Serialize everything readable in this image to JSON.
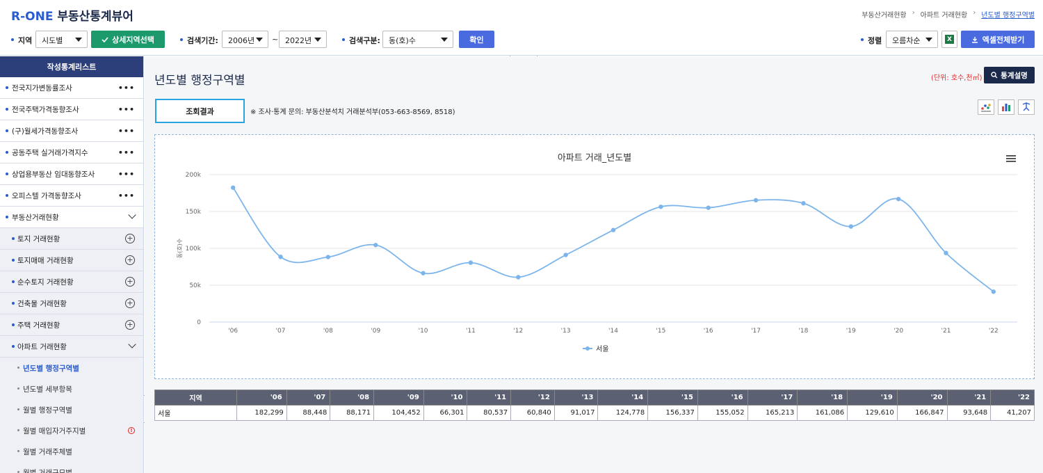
{
  "header": {
    "logo_brand": "R-ONE",
    "logo_rest": "부동산통계뷰어",
    "breadcrumb": [
      "부동산거래현황",
      "아파트 거래현황",
      "년도별 행정구역별"
    ],
    "breadcrumb_sep": "›"
  },
  "filters": {
    "region_label": "지역",
    "region_value": "시도별",
    "detail_region_label": "상세지역선택",
    "period_label": "검색기간:",
    "period_from": "2006년",
    "period_tilde": "~",
    "period_to": "2022년",
    "search_type_label": "검색구분:",
    "search_type_value": "동(호)수",
    "confirm_label": "확인",
    "sort_label": "정렬",
    "sort_value": "오름차순",
    "excel_icon_text": "X",
    "download_label": "엑셀전체받기"
  },
  "collapse_tab": "︿",
  "sidebar": {
    "header": "작성통계리스트",
    "top_items": [
      {
        "label": "전국지가변동률조사"
      },
      {
        "label": "전국주택가격동향조사"
      },
      {
        "label": "(구)월세가격동향조사"
      },
      {
        "label": "공동주택 실거래가격지수"
      },
      {
        "label": "상업용부동산 임대동향조사"
      },
      {
        "label": "오피스텔 가격동향조사"
      }
    ],
    "dots": "•••",
    "expanded_label": "부동산거래현황",
    "sub_items": [
      {
        "label": "토지 거래현황"
      },
      {
        "label": "토지매매 거래현황"
      },
      {
        "label": "순수토지 거래현황"
      },
      {
        "label": "건축물 거래현황"
      },
      {
        "label": "주택 거래현황"
      }
    ],
    "plus": "+",
    "apt_label": "아파트 거래현황",
    "subsub_items": [
      {
        "label": "년도별 행정구역별",
        "active": true
      },
      {
        "label": "년도별 세부항목"
      },
      {
        "label": "월별 행정구역별"
      },
      {
        "label": "월별 매입자거주지별",
        "warn": true
      },
      {
        "label": "월별 거래주체별"
      },
      {
        "label": "월별 거래규모별"
      }
    ],
    "warn_glyph": "!"
  },
  "side_toggle": "‹",
  "main": {
    "title": "년도별 행정구역별",
    "unit": "(단위: 호수,천㎡)",
    "stats_button": "통계설명",
    "tab_label": "조회결과",
    "note": "※ 조사·통계 문의: 부동산분석치 거래분석부(053-663-8569, 8518)"
  },
  "icons": {
    "search": "search-icon",
    "check": "check-icon",
    "download": "download-icon",
    "excel": "excel-icon",
    "scatter": "scatter-chart-icon",
    "bar": "bar-chart-icon",
    "pin": "pin-icon",
    "menu": "hamburger-menu-icon"
  },
  "colors": {
    "brand_blue": "#2b5ccf",
    "green": "#1c9a6c",
    "line": "#7cb5ec",
    "navy": "#1b2a4a",
    "cyan": "#28a3e0"
  },
  "chart_data": {
    "type": "line",
    "title": "아파트 거래_년도별",
    "ylabel": "동(호)수",
    "xlabel": "",
    "categories": [
      "'06",
      "'07",
      "'08",
      "'09",
      "'10",
      "'11",
      "'12",
      "'13",
      "'14",
      "'15",
      "'16",
      "'17",
      "'18",
      "'19",
      "'20",
      "'21",
      "'22"
    ],
    "series": [
      {
        "name": "서울",
        "values": [
          182299,
          88448,
          88171,
          104452,
          66301,
          80537,
          60840,
          91017,
          124778,
          156337,
          155052,
          165213,
          161086,
          129610,
          166847,
          93648,
          41207
        ]
      }
    ],
    "yticks": [
      "0",
      "50k",
      "100k",
      "150k",
      "200k"
    ],
    "ylim": [
      0,
      200000
    ],
    "grid": true,
    "legend_position": "bottom"
  },
  "table": {
    "header_first": "지역",
    "rows": [
      {
        "region": "서울",
        "values": [
          "182,299",
          "88,448",
          "88,171",
          "104,452",
          "66,301",
          "80,537",
          "60,840",
          "91,017",
          "124,778",
          "156,337",
          "155,052",
          "165,213",
          "161,086",
          "129,610",
          "166,847",
          "93,648",
          "41,207"
        ]
      }
    ]
  }
}
